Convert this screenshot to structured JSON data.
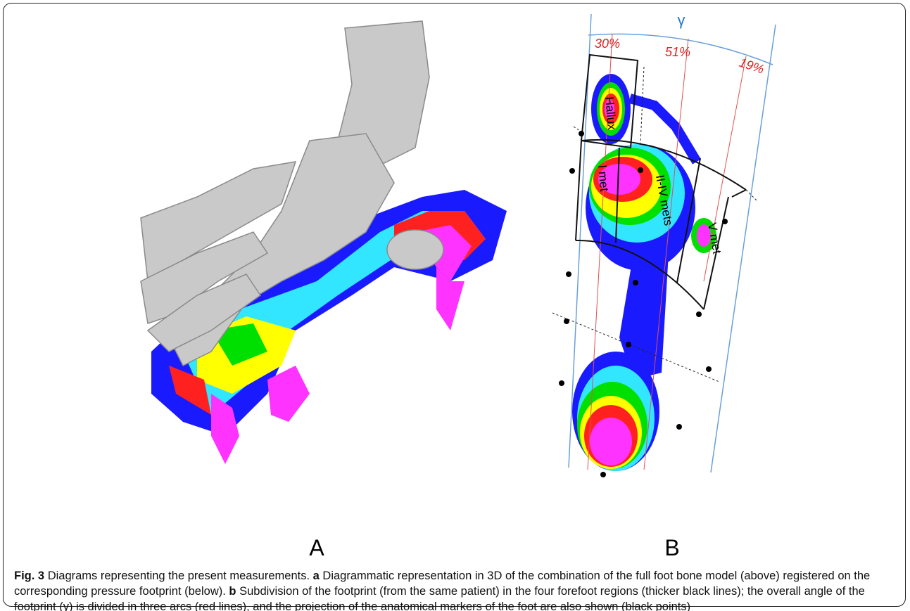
{
  "panels": {
    "a": "A",
    "b": "B",
    "b_labels": {
      "gamma": "γ",
      "arcs": [
        "30%",
        "51%",
        "19%"
      ],
      "regions": [
        "Hallux",
        "I met",
        "II-IV mets",
        "V met"
      ]
    }
  },
  "caption": {
    "label": "Fig. 3",
    "text": "Diagrams representing the present measurements.",
    "parts": [
      {
        "label": "a",
        "text": "Diagrammatic representation in 3D of the combination of the full foot bone model (above) registered on the corresponding pressure footprint (below)."
      },
      {
        "label": "b",
        "text": "Subdivision of the footprint (from the same patient) in the four forefoot regions (thicker black lines); the overall angle of the footprint (γ) is divided in three arcs (red lines), and the projection of the anatomical markers of the foot are also shown (black points)"
      }
    ]
  }
}
